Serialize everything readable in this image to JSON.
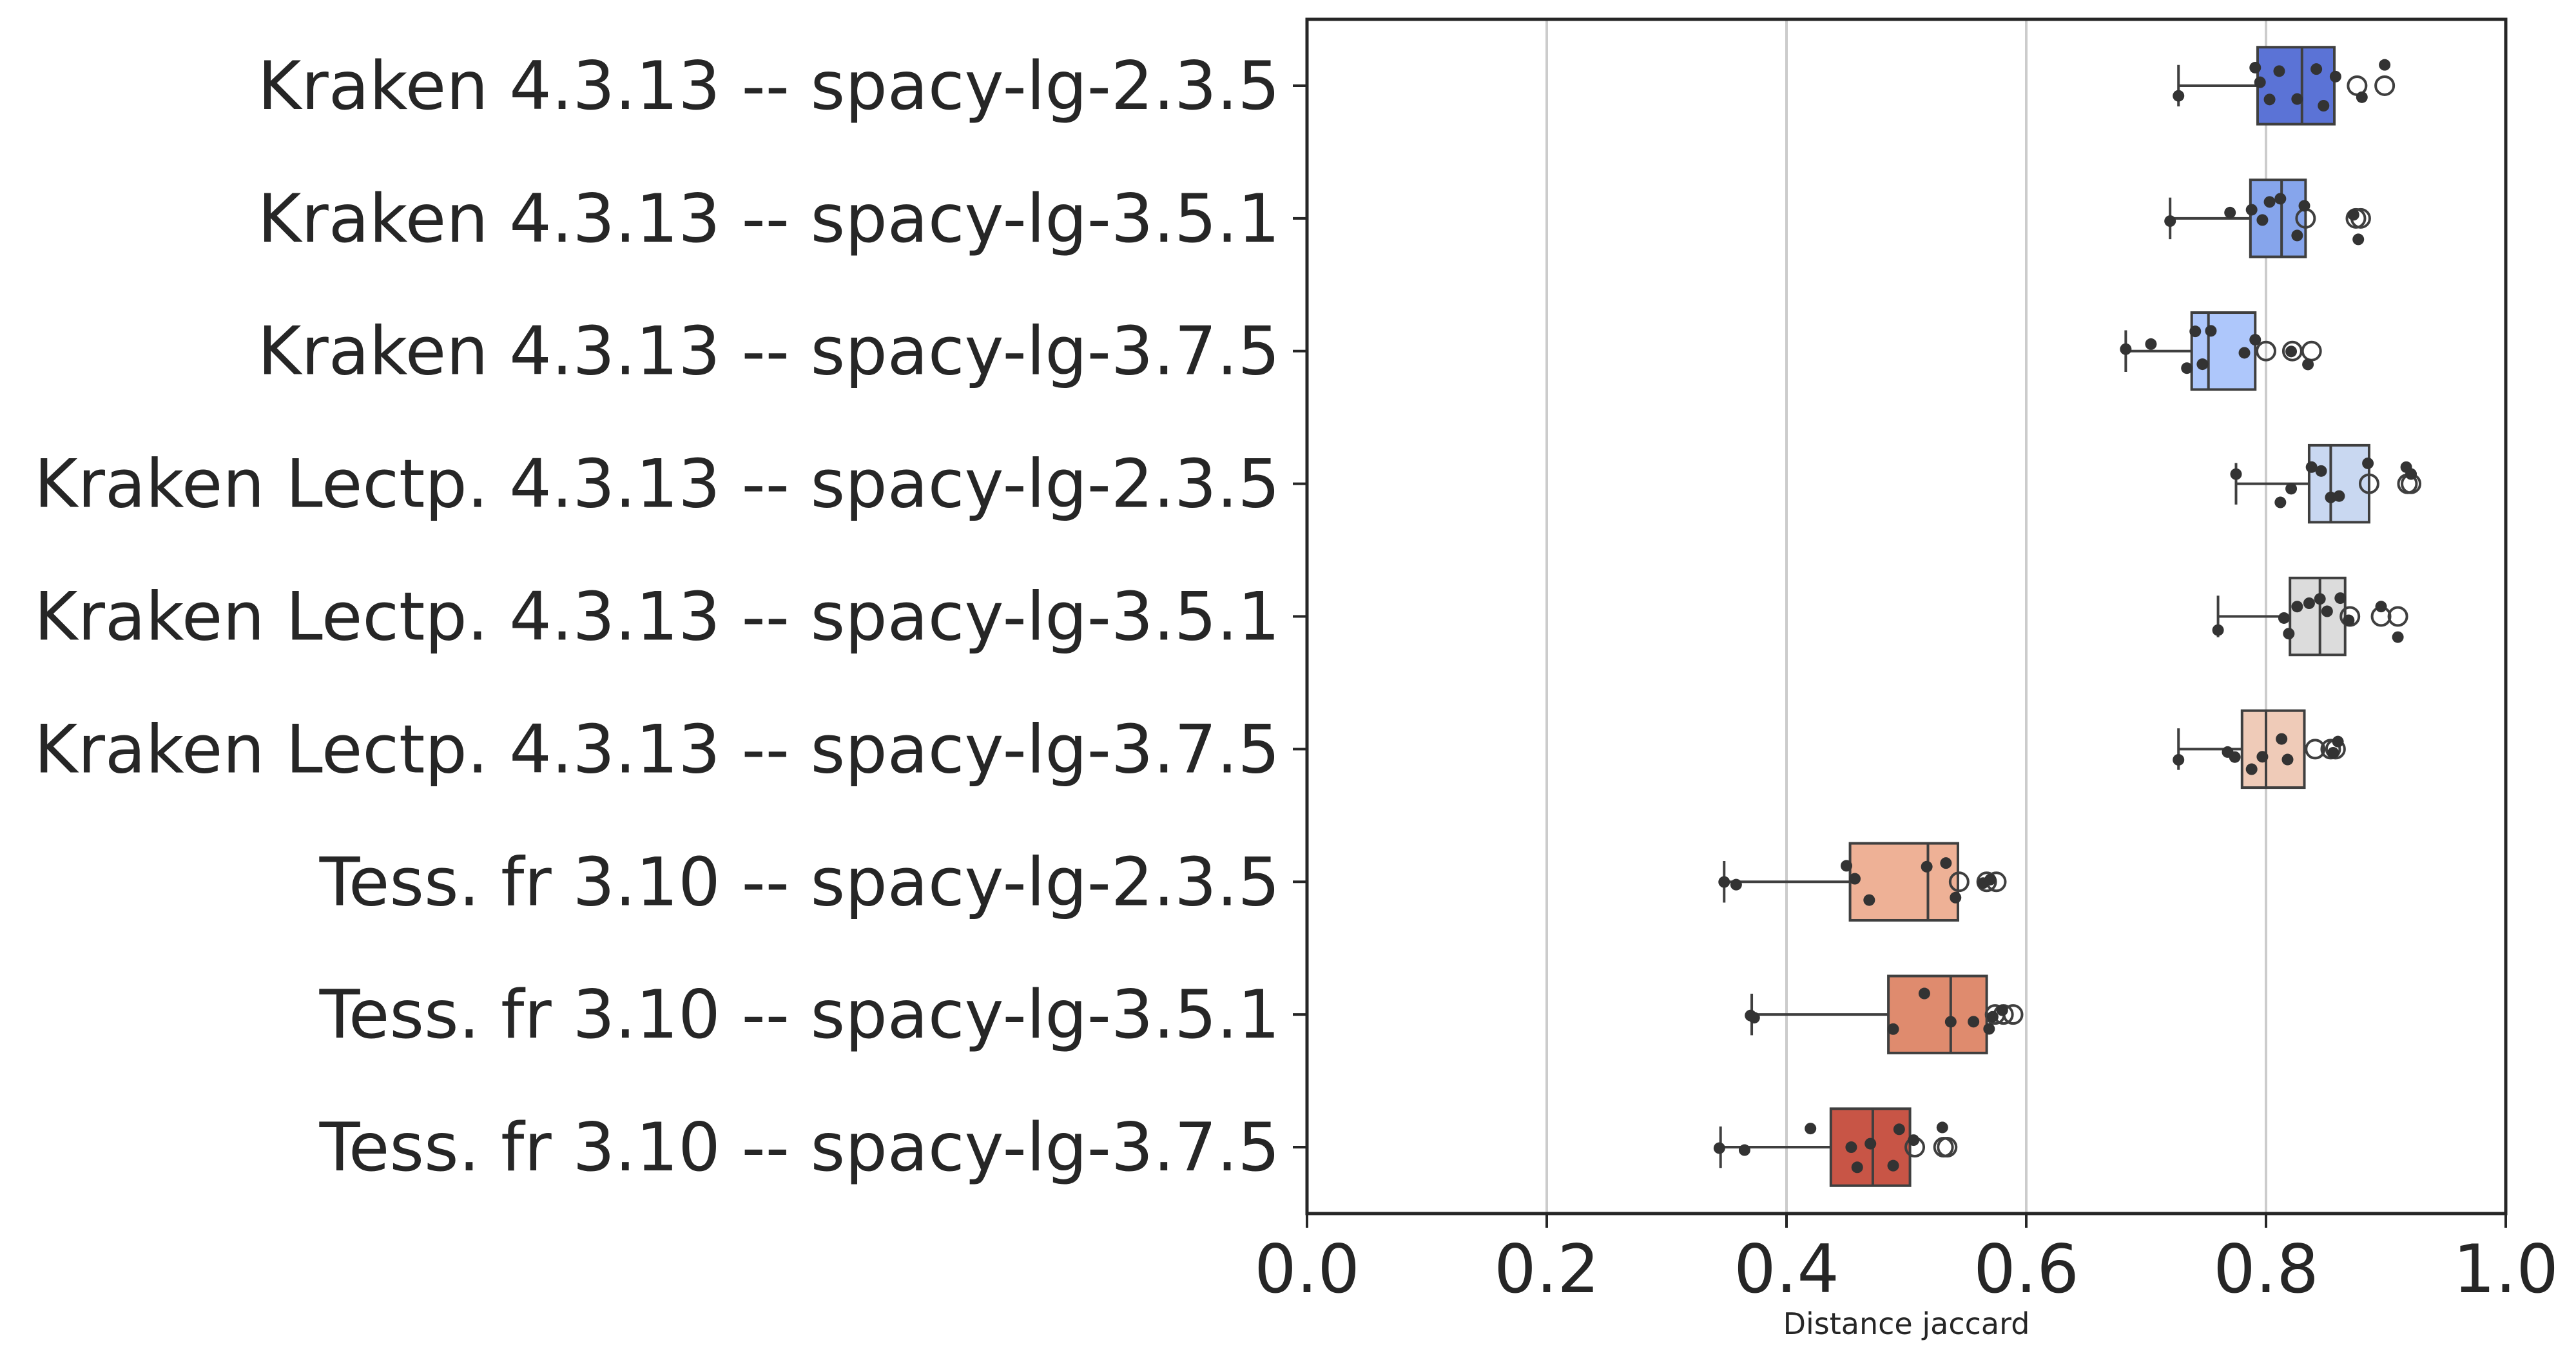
{
  "chart_data": {
    "type": "box",
    "orientation": "horizontal",
    "xlabel": "Distance jaccard",
    "xlim": [
      0.0,
      1.0
    ],
    "xticks": [
      "0.0",
      "0.2",
      "0.4",
      "0.6",
      "0.8",
      "1.0"
    ],
    "grid": "vertical",
    "categories": [
      "Kraken 4.3.13 -- spacy-lg-2.3.5",
      "Kraken 4.3.13 -- spacy-lg-3.5.1",
      "Kraken 4.3.13 -- spacy-lg-3.7.5",
      "Kraken Lectp. 4.3.13 -- spacy-lg-2.3.5",
      "Kraken Lectp. 4.3.13 -- spacy-lg-3.5.1",
      "Kraken Lectp. 4.3.13 -- spacy-lg-3.7.5",
      "Tess. fr 3.10 -- spacy-lg-2.3.5",
      "Tess. fr 3.10 -- spacy-lg-3.5.1",
      "Tess. fr 3.10 -- spacy-lg-3.7.5"
    ],
    "colors": [
      "#5b73d6",
      "#86a5ec",
      "#aec7fb",
      "#c9d8f1",
      "#dcdcdc",
      "#efcbb8",
      "#eeb196",
      "#df8b6e",
      "#c85546"
    ],
    "boxes": [
      {
        "whisker_low": 0.727,
        "q1": 0.793,
        "median": 0.83,
        "q3": 0.857,
        "whisker_high": 0.857,
        "outliers": [
          0.876,
          0.899
        ]
      },
      {
        "whisker_low": 0.72,
        "q1": 0.787,
        "median": 0.813,
        "q3": 0.833,
        "whisker_high": 0.833,
        "outliers": [
          0.833,
          0.875,
          0.879
        ]
      },
      {
        "whisker_low": 0.683,
        "q1": 0.738,
        "median": 0.752,
        "q3": 0.791,
        "whisker_high": 0.791,
        "outliers": [
          0.8,
          0.822,
          0.838
        ]
      },
      {
        "whisker_low": 0.775,
        "q1": 0.836,
        "median": 0.854,
        "q3": 0.886,
        "whisker_high": 0.886,
        "outliers": [
          0.886,
          0.918,
          0.921
        ]
      },
      {
        "whisker_low": 0.76,
        "q1": 0.82,
        "median": 0.845,
        "q3": 0.866,
        "whisker_high": 0.866,
        "outliers": [
          0.87,
          0.896,
          0.91
        ]
      },
      {
        "whisker_low": 0.727,
        "q1": 0.78,
        "median": 0.8,
        "q3": 0.832,
        "whisker_high": 0.832,
        "outliers": [
          0.841,
          0.854,
          0.858
        ]
      },
      {
        "whisker_low": 0.348,
        "q1": 0.453,
        "median": 0.518,
        "q3": 0.543,
        "whisker_high": 0.543,
        "outliers": [
          0.544,
          0.567,
          0.575
        ]
      },
      {
        "whisker_low": 0.371,
        "q1": 0.485,
        "median": 0.537,
        "q3": 0.567,
        "whisker_high": 0.567,
        "outliers": [
          0.574,
          0.581,
          0.589
        ]
      },
      {
        "whisker_low": 0.345,
        "q1": 0.437,
        "median": 0.472,
        "q3": 0.503,
        "whisker_high": 0.503,
        "outliers": [
          0.507,
          0.531,
          0.534
        ]
      }
    ],
    "points": [
      [
        0.727,
        0.791,
        0.795,
        0.803,
        0.811,
        0.826,
        0.842,
        0.848,
        0.858,
        0.88,
        0.899
      ],
      [
        0.72,
        0.77,
        0.788,
        0.797,
        0.803,
        0.812,
        0.826,
        0.832,
        0.873,
        0.877
      ],
      [
        0.683,
        0.704,
        0.734,
        0.741,
        0.747,
        0.754,
        0.782,
        0.791,
        0.821,
        0.835
      ],
      [
        0.775,
        0.812,
        0.821,
        0.838,
        0.846,
        0.854,
        0.861,
        0.885,
        0.917,
        0.921
      ],
      [
        0.76,
        0.815,
        0.819,
        0.826,
        0.836,
        0.845,
        0.851,
        0.862,
        0.869,
        0.896,
        0.91
      ],
      [
        0.727,
        0.768,
        0.774,
        0.788,
        0.797,
        0.813,
        0.818,
        0.856,
        0.86
      ],
      [
        0.348,
        0.358,
        0.45,
        0.457,
        0.469,
        0.517,
        0.533,
        0.541,
        0.564,
        0.57
      ],
      [
        0.37,
        0.373,
        0.489,
        0.515,
        0.537,
        0.556,
        0.569,
        0.572,
        0.58
      ],
      [
        0.344,
        0.365,
        0.42,
        0.454,
        0.459,
        0.47,
        0.489,
        0.494,
        0.506,
        0.53
      ]
    ]
  }
}
